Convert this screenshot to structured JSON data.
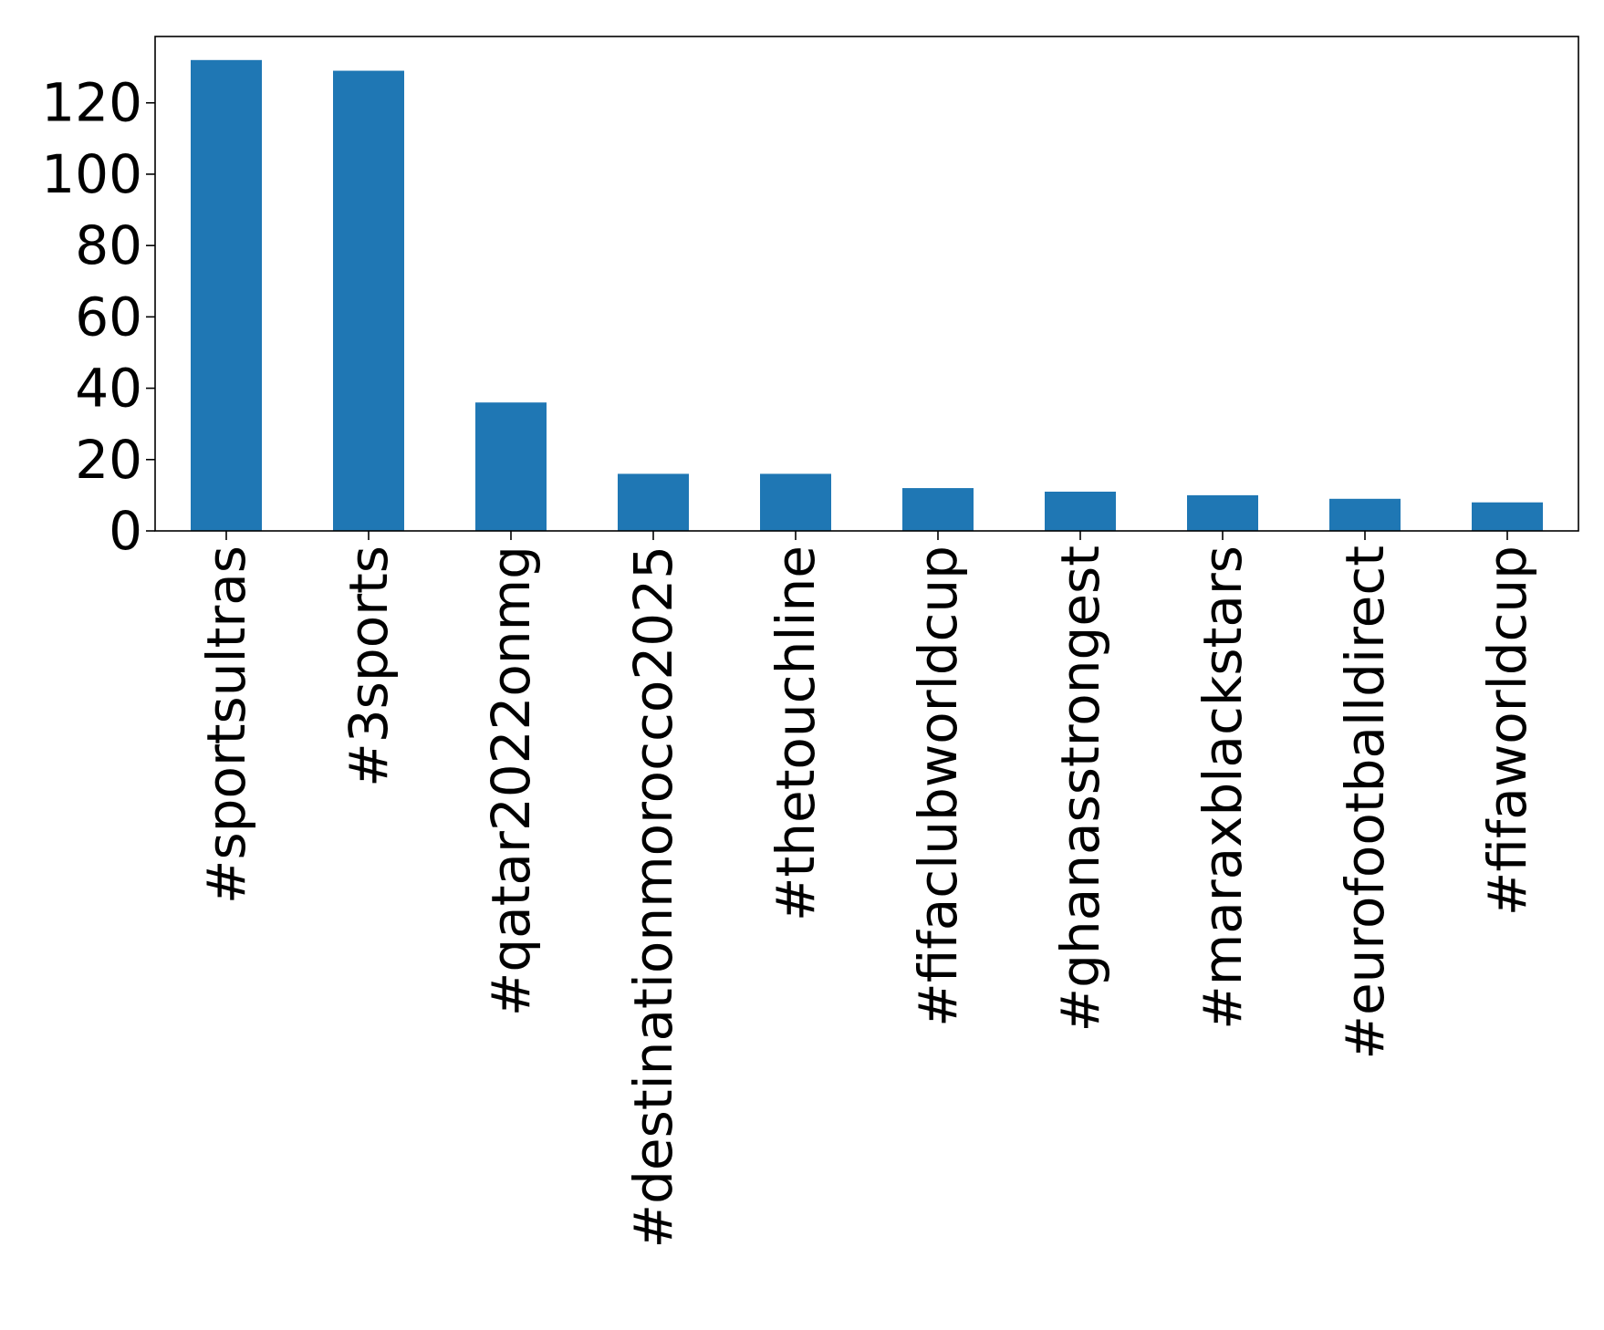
{
  "chart_data": {
    "type": "bar",
    "title": "",
    "xlabel": "",
    "ylabel": "",
    "categories": [
      "#sportsultras",
      "#3sports",
      "#qatar2022onmg",
      "#destinationmorocco2025",
      "#thetouchline",
      "#fifaclubworldcup",
      "#ghanasstrongest",
      "#maraxblackstars",
      "#eurofootballdirect",
      "#fifaworldcup"
    ],
    "values": [
      132,
      129,
      36,
      16,
      16,
      12,
      11,
      10,
      9,
      8
    ],
    "ylim": [
      0,
      138.6
    ],
    "yticks": [
      0,
      20,
      40,
      60,
      80,
      100,
      120
    ],
    "bar_color": "#1f77b4",
    "grid": false,
    "legend": "none"
  }
}
